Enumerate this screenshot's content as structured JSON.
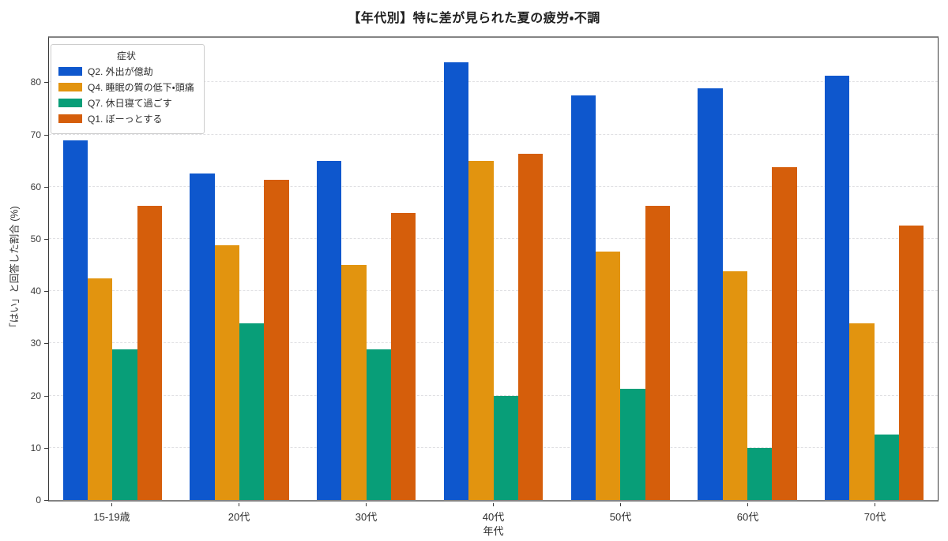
{
  "title": "【年代別】特に差が見られた夏の疲労・不調",
  "chart_data": {
    "type": "bar",
    "title": "【年代別】特に差が見られた夏の疲労・不調",
    "xlabel": "年代",
    "ylabel": "「はい」と回答した割合 (%)",
    "categories": [
      "15-19歳",
      "20代",
      "30代",
      "40代",
      "50代",
      "60代",
      "70代"
    ],
    "series": [
      {
        "name": "Q2. 外出が億劫",
        "color": "#0e57cd",
        "values": [
          68.8,
          62.5,
          65.0,
          83.8,
          77.5,
          78.8,
          81.3
        ]
      },
      {
        "name": "Q4. 睡眠の質の低下・頭痛",
        "color": "#e2940f",
        "values": [
          42.5,
          48.8,
          45.0,
          65.0,
          47.5,
          43.8,
          33.8
        ]
      },
      {
        "name": "Q7. 休日寝て過ごす",
        "color": "#089e78",
        "values": [
          28.8,
          33.8,
          28.8,
          20.0,
          21.3,
          10.0,
          12.5
        ]
      },
      {
        "name": "Q1. ぼーっとする",
        "color": "#d55e0b",
        "values": [
          56.3,
          61.3,
          55.0,
          66.3,
          56.3,
          63.8,
          52.5
        ]
      }
    ],
    "legend_title": "症状",
    "legend_position": "upper left",
    "ylim": [
      0,
      88.5
    ],
    "yticks": [
      0,
      10,
      20,
      30,
      40,
      50,
      60,
      70,
      80
    ],
    "grid": true,
    "grid_style": "dashed"
  },
  "colors": {
    "background": "#ffffff",
    "title_text": "#1f1f1f",
    "tick_text": "#3b3b3b",
    "axis_spine": "#3a3a3a",
    "gridline": "#e0e0e3",
    "legend_border": "#cccccc"
  }
}
